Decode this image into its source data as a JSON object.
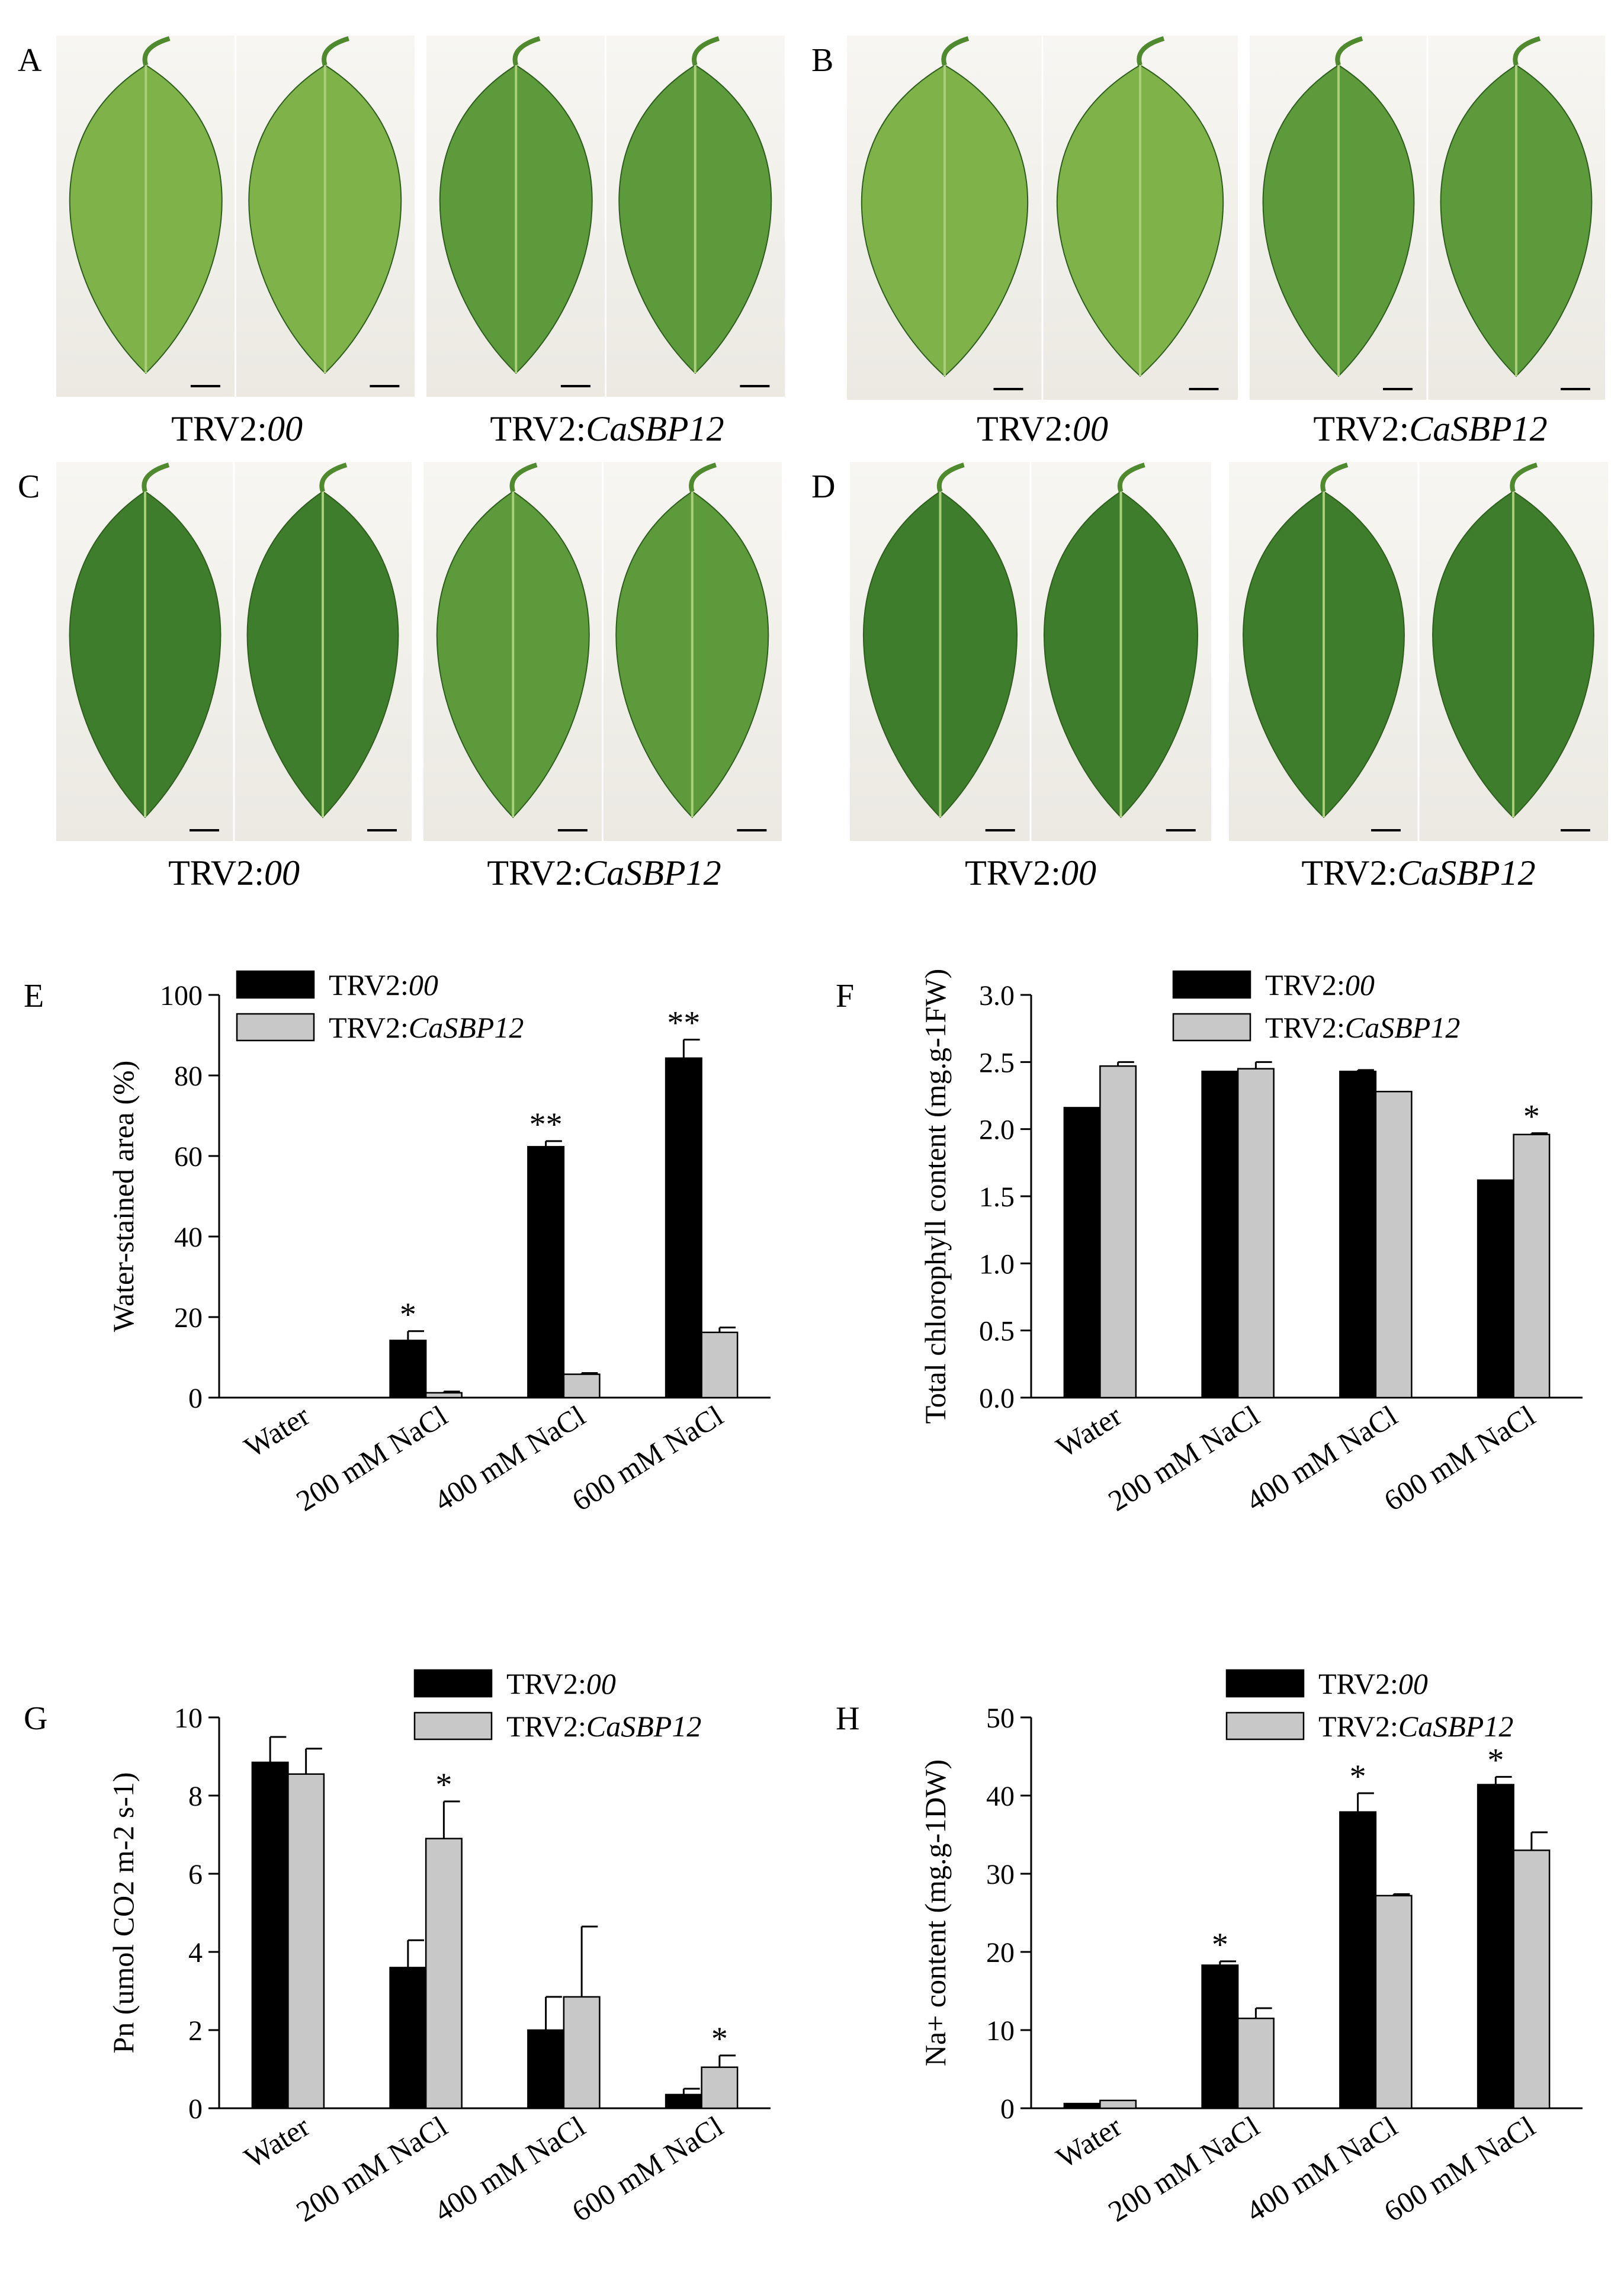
{
  "panels": {
    "A": {
      "letter": "A",
      "control_label": "TRV2:",
      "control_italic": "00",
      "treat_label": "TRV2:",
      "treat_italic": "CaSBP12"
    },
    "B": {
      "letter": "B",
      "control_label": "TRV2:",
      "control_italic": "00",
      "treat_label": "TRV2:",
      "treat_italic": "CaSBP12"
    },
    "C": {
      "letter": "C",
      "control_label": "TRV2:",
      "control_italic": "00",
      "treat_label": "TRV2:",
      "treat_italic": "CaSBP12"
    },
    "D": {
      "letter": "D",
      "control_label": "TRV2:",
      "control_italic": "00",
      "treat_label": "TRV2:",
      "treat_italic": "CaSBP12"
    }
  },
  "colors": {
    "control": "#000000",
    "treat": "#c8c8c8",
    "leaf_light": "#7fb34a",
    "leaf_dark": "#3e7d2c"
  },
  "chart_data": [
    {
      "id": "E",
      "letter": "E",
      "type": "bar",
      "categories": [
        "Water",
        "200 mM NaCl",
        "400 mM NaCl",
        "600 mM NaCl"
      ],
      "ylabel": "Water-stained  area (%)",
      "ylim": [
        0,
        100
      ],
      "yticks": [
        "0",
        "20",
        "40",
        "60",
        "80",
        "100"
      ],
      "series": [
        {
          "name": "TRV2:",
          "name_italic": "00",
          "values": [
            0,
            14.2,
            62.3,
            84.3
          ],
          "err": [
            0,
            2.3,
            1.4,
            4.6
          ]
        },
        {
          "name": "TRV2:",
          "name_italic": "CaSBP12",
          "values": [
            0,
            1.2,
            5.8,
            16.2
          ],
          "err": [
            0,
            0.3,
            0.3,
            1.2
          ]
        }
      ],
      "sig": [
        [
          "",
          "*",
          "**",
          "**"
        ],
        [
          "",
          "",
          "",
          ""
        ]
      ]
    },
    {
      "id": "F",
      "letter": "F",
      "type": "bar",
      "categories": [
        "Water",
        "200 mM NaCl",
        "400 mM NaCl",
        "600 mM NaCl"
      ],
      "ylabel": "Total chlorophyll content (mg.g-1FW)",
      "ylim": [
        0,
        3
      ],
      "yticks": [
        "0.0",
        "0.5",
        "1.0",
        "1.5",
        "2.0",
        "2.5",
        "3.0"
      ],
      "series": [
        {
          "name": "TRV2:",
          "name_italic": "00",
          "values": [
            2.16,
            2.43,
            2.43,
            1.62
          ],
          "err": [
            0,
            0,
            0.01,
            0
          ]
        },
        {
          "name": "TRV2:",
          "name_italic": "CaSBP12",
          "values": [
            2.47,
            2.45,
            2.28,
            1.96
          ],
          "err": [
            0.03,
            0.05,
            0,
            0.01
          ]
        }
      ],
      "sig": [
        [
          "",
          "",
          "",
          ""
        ],
        [
          "",
          "",
          "",
          "*"
        ]
      ]
    },
    {
      "id": "G",
      "letter": "G",
      "type": "bar",
      "categories": [
        "Water",
        "200 mM NaCl",
        "400 mM NaCl",
        "600 mM NaCl"
      ],
      "ylabel": "Pn (umol CO2 m-2 s-1)",
      "ylim": [
        0,
        10
      ],
      "yticks": [
        "0",
        "2",
        "4",
        "6",
        "8",
        "10"
      ],
      "series": [
        {
          "name": "TRV2:",
          "name_italic": "00",
          "values": [
            8.85,
            3.6,
            2.0,
            0.35
          ],
          "err": [
            0.65,
            0.7,
            0.85,
            0.15
          ]
        },
        {
          "name": "TRV2:",
          "name_italic": "CaSBP12",
          "values": [
            8.55,
            6.9,
            2.85,
            1.05
          ],
          "err": [
            0.65,
            0.95,
            1.8,
            0.3
          ]
        }
      ],
      "sig": [
        [
          "",
          "",
          "",
          ""
        ],
        [
          "",
          "*",
          "",
          "*"
        ]
      ]
    },
    {
      "id": "H",
      "letter": "H",
      "type": "bar",
      "categories": [
        "Water",
        "200 mM NaCl",
        "400 mM NaCl",
        "600 mM NaCl"
      ],
      "ylabel": "Na+ content (mg.g-1DW)",
      "ylim": [
        0,
        50
      ],
      "yticks": [
        "0",
        "10",
        "20",
        "30",
        "40",
        "50"
      ],
      "series": [
        {
          "name": "TRV2:",
          "name_italic": "00",
          "values": [
            0.6,
            18.3,
            37.9,
            41.4
          ],
          "err": [
            0,
            0.5,
            2.4,
            1.0
          ]
        },
        {
          "name": "TRV2:",
          "name_italic": "CaSBP12",
          "values": [
            1.0,
            11.5,
            27.2,
            33.0
          ],
          "err": [
            0,
            1.3,
            0.2,
            2.3
          ]
        }
      ],
      "sig": [
        [
          "",
          "*",
          "*",
          "*"
        ],
        [
          "",
          "",
          "",
          ""
        ]
      ]
    }
  ]
}
